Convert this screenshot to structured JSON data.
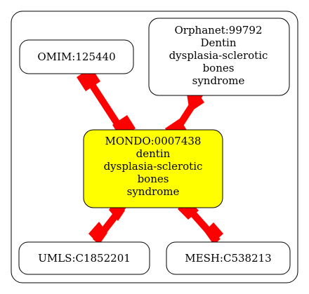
{
  "colors": {
    "edge": "#ff0000",
    "center_fill": "#ffff00",
    "node_fill": "#ffffff",
    "stroke": "#000000",
    "background": "#ffffff"
  },
  "nodes": {
    "center": {
      "lines": [
        "MONDO:0007438",
        "dentin",
        "dysplasia-sclerotic",
        "bones",
        "syndrome"
      ]
    },
    "omim": {
      "lines": [
        "OMIM:125440"
      ]
    },
    "orphanet": {
      "lines": [
        "Orphanet:99792",
        "Dentin",
        "dysplasia-sclerotic",
        "bones",
        "syndrome"
      ]
    },
    "umls": {
      "lines": [
        "UMLS:C1852201"
      ]
    },
    "mesh": {
      "lines": [
        "MESH:C538213"
      ]
    }
  },
  "edges": [
    {
      "from": "center",
      "to": "omim"
    },
    {
      "from": "center",
      "to": "orphanet"
    },
    {
      "from": "center",
      "to": "umls"
    },
    {
      "from": "center",
      "to": "mesh"
    }
  ]
}
